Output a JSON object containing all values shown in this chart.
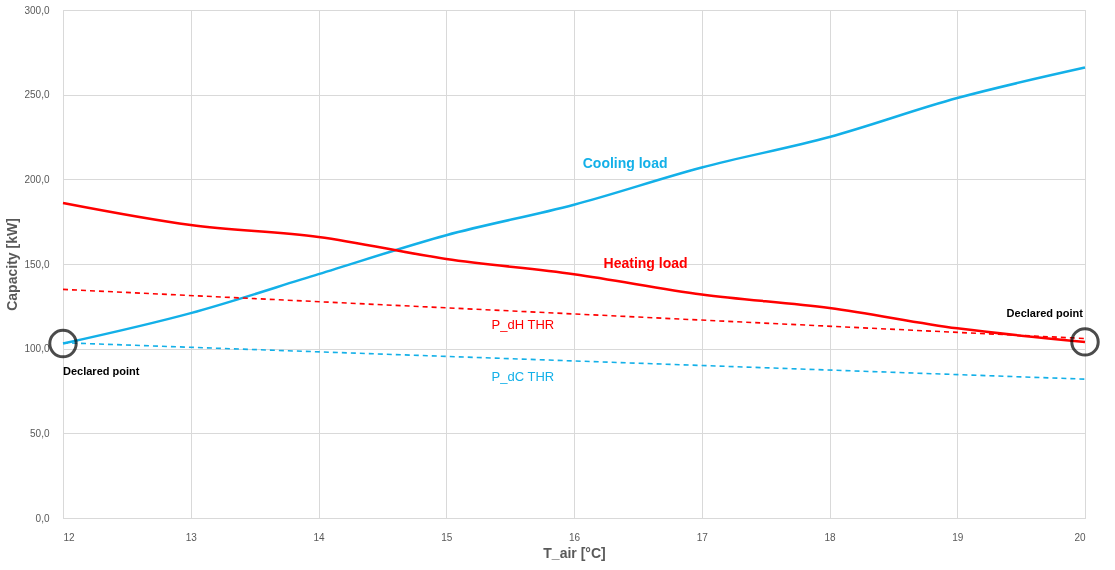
{
  "chart_data": {
    "type": "line",
    "xlabel": "T_air [°C]",
    "ylabel": "Capacity [kW]",
    "xlim": [
      12,
      20
    ],
    "xticks": [
      12,
      13,
      14,
      15,
      16,
      17,
      18,
      19,
      20
    ],
    "ylim": [
      0,
      300
    ],
    "yticks": [
      {
        "value": 0,
        "label": "0,0"
      },
      {
        "value": 50,
        "label": "50,0"
      },
      {
        "value": 100,
        "label": "100,0"
      },
      {
        "value": 150,
        "label": "150,0"
      },
      {
        "value": 200,
        "label": "200,0"
      },
      {
        "value": 250,
        "label": "250,0"
      },
      {
        "value": 300,
        "label": "300,0"
      }
    ],
    "grid": true,
    "series": [
      {
        "name": "Cooling load",
        "color": "#13b0e8",
        "line_style": "solid",
        "x": [
          12,
          13,
          14,
          15,
          16,
          17,
          18,
          19,
          20
        ],
        "values": [
          103,
          121,
          144,
          167,
          185,
          207,
          225,
          248,
          266
        ]
      },
      {
        "name": "Heating load",
        "color": "#ff0000",
        "line_style": "solid",
        "x": [
          12,
          13,
          14,
          15,
          16,
          17,
          18,
          19,
          20
        ],
        "values": [
          186,
          173,
          166,
          153,
          144,
          132,
          124,
          112,
          104
        ]
      },
      {
        "name": "P_dH THR",
        "color": "#ff0000",
        "line_style": "dashed",
        "x": [
          12,
          20
        ],
        "values": [
          135,
          106
        ]
      },
      {
        "name": "P_dC THR",
        "color": "#13b0e8",
        "line_style": "dashed",
        "x": [
          12,
          20
        ],
        "values": [
          103.5,
          82
        ]
      },
      {
        "color": "#000000",
        "type": "scatter",
        "marker": "circle",
        "x": [
          12,
          20
        ],
        "values": [
          103,
          104
        ]
      }
    ],
    "annotations": [
      {
        "text": "Declared point",
        "x": 12,
        "y": 103
      },
      {
        "text": "Declared point",
        "x": 20,
        "y": 104
      }
    ]
  }
}
